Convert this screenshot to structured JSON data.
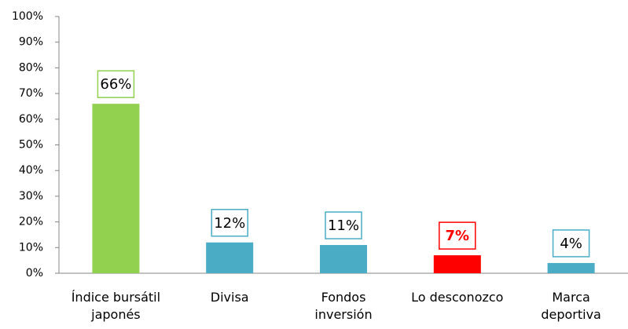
{
  "chart_data": {
    "type": "bar",
    "categories": [
      "Índice bursátil\njaponés",
      "Divisa",
      "Fondos\ninversión",
      "Lo desconozco",
      "Marca\ndeportiva"
    ],
    "values": [
      66,
      12,
      11,
      7,
      4
    ],
    "value_labels": [
      "66%",
      "12%",
      "11%",
      "7%",
      "4%"
    ],
    "colors": [
      "#92d050",
      "#4bacc6",
      "#4bacc6",
      "#ff0000",
      "#4bacc6"
    ],
    "ylim": [
      0,
      100
    ],
    "yticks": [
      {
        "value": 0,
        "label": "0%"
      },
      {
        "value": 10,
        "label": "10%"
      },
      {
        "value": 20,
        "label": "20%"
      },
      {
        "value": 30,
        "label": "30%"
      },
      {
        "value": 40,
        "label": "40%"
      },
      {
        "value": 50,
        "label": "50%"
      },
      {
        "value": 60,
        "label": "60%"
      },
      {
        "value": 70,
        "label": "70%"
      },
      {
        "value": 80,
        "label": "80%"
      },
      {
        "value": 90,
        "label": "90%"
      },
      {
        "value": 100,
        "label": "100%"
      }
    ],
    "grid": false
  }
}
